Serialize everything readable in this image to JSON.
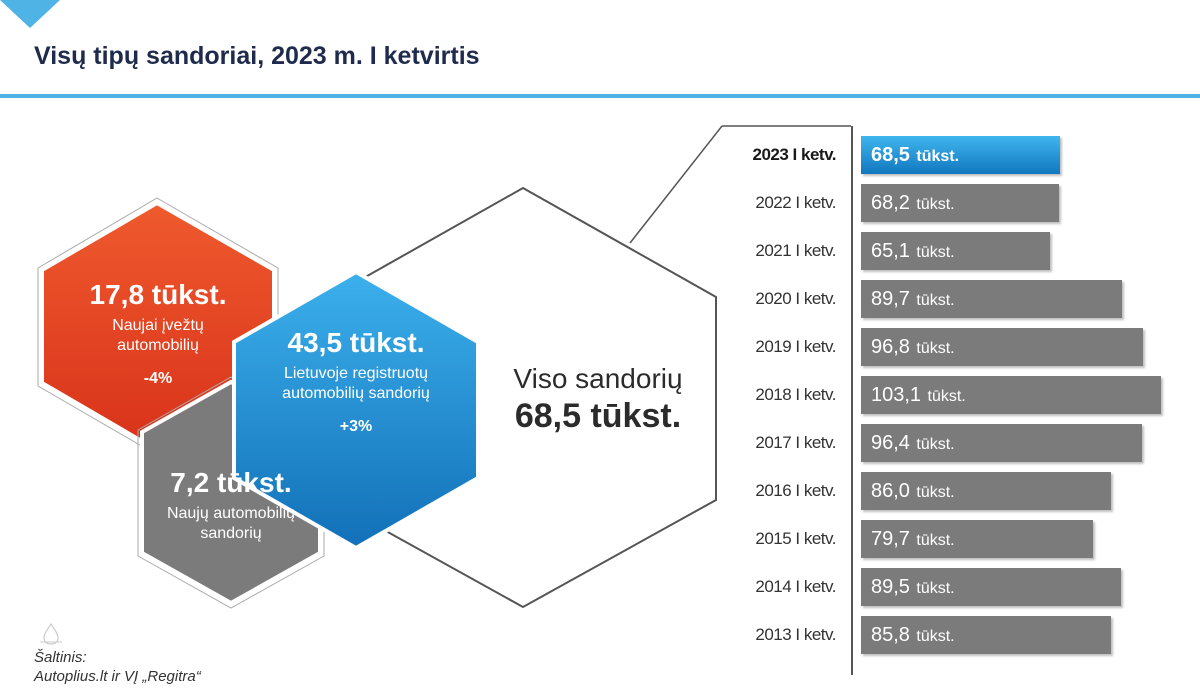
{
  "title": "Visų tipų sandoriai, 2023 m. I ketvirtis",
  "colors": {
    "accent": "#4fb3e6",
    "red": "#e84424",
    "blue": "#1e8ad5",
    "gray": "#7b7b7b"
  },
  "hexes": {
    "imported": {
      "value": "17,8 tūkst.",
      "label_line1": "Naujai įvežtų",
      "label_line2": "automobilių",
      "change": "-4%"
    },
    "registered": {
      "value": "43,5 tūkst.",
      "label_line1": "Lietuvoje registruotų",
      "label_line2": "automobilių sandorių",
      "change": "+3%"
    },
    "new": {
      "value": "7,2 tūkst.",
      "label_line1": "Naujų automobilių",
      "label_line2": "sandorių"
    },
    "total": {
      "label": "Viso sandorių",
      "value": "68,5 tūkst."
    }
  },
  "source": {
    "line1": "Šaltinis:",
    "line2": "Autoplius.lt ir VĮ „Regitra“"
  },
  "chart_data": {
    "type": "bar",
    "orientation": "horizontal",
    "unit": "tūkst.",
    "categories": [
      "2023 I ketv.",
      "2022 I ketv.",
      "2021 I ketv.",
      "2020 I ketv.",
      "2019 I ketv.",
      "2018 I ketv.",
      "2017 I ketv.",
      "2016 I ketv.",
      "2015 I ketv.",
      "2014 I ketv.",
      "2013 I ketv."
    ],
    "values": [
      68.5,
      68.2,
      65.1,
      89.7,
      96.8,
      103.1,
      96.4,
      86.0,
      79.7,
      89.5,
      85.8
    ],
    "value_labels": [
      "68,5",
      "68,2",
      "65,1",
      "89,7",
      "96,8",
      "103,1",
      "96,4",
      "86,0",
      "79,7",
      "89,5",
      "85,8"
    ],
    "highlight_index": 0,
    "highlight_color": "#1e8ad5",
    "bar_color": "#7b7b7b"
  }
}
